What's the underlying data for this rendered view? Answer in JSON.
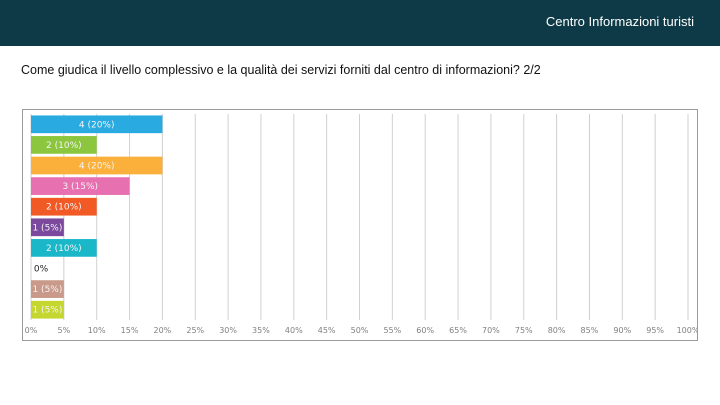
{
  "header": {
    "title": "Centro Informazioni turisti"
  },
  "question": {
    "text": "Come giudica il livello complessivo e la qualità dei servizi forniti dal centro di informazioni? 2/2"
  },
  "chart_data": {
    "type": "bar",
    "orientation": "horizontal",
    "title": "",
    "xlabel": "",
    "ylabel": "",
    "xlim": [
      0,
      100
    ],
    "grid": true,
    "x_ticks": [
      "0%",
      "5%",
      "10%",
      "15%",
      "20%",
      "25%",
      "30%",
      "35%",
      "40%",
      "45%",
      "50%",
      "55%",
      "60%",
      "65%",
      "70%",
      "75%",
      "80%",
      "85%",
      "90%",
      "95%",
      "100%"
    ],
    "bars": [
      {
        "value": 20,
        "label": "4 (20%)",
        "color": "#29abe2"
      },
      {
        "value": 10,
        "label": "2 (10%)",
        "color": "#8cc63f"
      },
      {
        "value": 20,
        "label": "4 (20%)",
        "color": "#fbb03b"
      },
      {
        "value": 15,
        "label": "3 (15%)",
        "color": "#e770b0"
      },
      {
        "value": 10,
        "label": "2 (10%)",
        "color": "#f15a24"
      },
      {
        "value": 5,
        "label": "1 (5%)",
        "color": "#7b4a9e"
      },
      {
        "value": 10,
        "label": "2 (10%)",
        "color": "#1ab7c9"
      },
      {
        "value": 0,
        "label": "0%",
        "color": "#b0b0b0"
      },
      {
        "value": 5,
        "label": "1 (5%)",
        "color": "#c99a8a"
      },
      {
        "value": 5,
        "label": "1 (5%)",
        "color": "#c5d62f"
      }
    ]
  }
}
